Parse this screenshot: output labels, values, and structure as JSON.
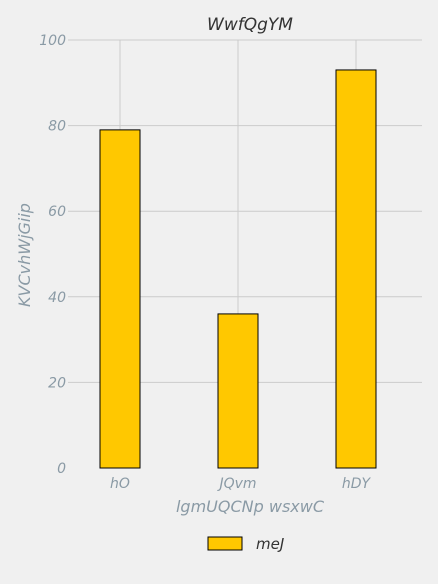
{
  "chart_data": {
    "type": "bar",
    "title": "WwfQgYM",
    "xlabel": "lgmUQCNp wsxwC",
    "ylabel": "KVCvhWjGiip",
    "categories": [
      "hO",
      "JQvm",
      "hDY"
    ],
    "series": [
      {
        "name": "meJ",
        "values": [
          79,
          36,
          93
        ],
        "color": "#ffc800"
      }
    ],
    "ylim": [
      0,
      100
    ],
    "yticks": [
      0,
      20,
      40,
      60,
      80,
      100
    ],
    "grid": true,
    "legend": "bottom-center"
  }
}
